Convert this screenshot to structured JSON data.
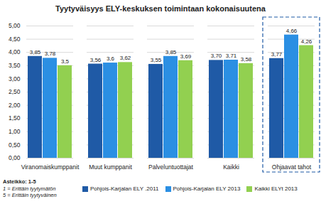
{
  "chart_data": {
    "type": "bar",
    "title": "Tyytyväisyys ELY-keskuksen toimintaan kokonaisuutena",
    "categories": [
      "Viranomaiskumppanit",
      "Muut kumppanit",
      "Palveluntuottajat",
      "Kaikki",
      "Ohjaavat tahot"
    ],
    "series": [
      {
        "name": "Pohjois-Karjalan ELY .2011",
        "color": "#1f5aa6",
        "values": [
          3.85,
          3.56,
          3.55,
          3.7,
          3.77
        ],
        "value_labels": [
          "3,85",
          "3,56",
          "3,55",
          "3,70",
          "3,77"
        ]
      },
      {
        "name": "Pohjois-Karjalan ELY 2013",
        "color": "#2b8fe3",
        "values": [
          3.78,
          3.6,
          3.85,
          3.71,
          4.66
        ],
        "value_labels": [
          "3,78",
          "3,6",
          "3,85",
          "3,71",
          "4,66"
        ]
      },
      {
        "name": "Kaikki ELYt 2013",
        "color": "#92d050",
        "values": [
          3.5,
          3.62,
          3.69,
          3.58,
          4.26
        ],
        "value_labels": [
          "3,5",
          "3,62",
          "3,69",
          "3,58",
          "4,26"
        ]
      }
    ],
    "ylim": [
      0,
      5
    ],
    "yticks": [
      {
        "value": 0,
        "label": "0,00"
      },
      {
        "value": 0.5,
        "label": "0,50"
      },
      {
        "value": 1,
        "label": "1,00"
      },
      {
        "value": 1.5,
        "label": "1,50"
      },
      {
        "value": 2,
        "label": "2,00"
      },
      {
        "value": 2.5,
        "label": "2,50"
      },
      {
        "value": 3,
        "label": "3,00"
      },
      {
        "value": 3.5,
        "label": "3,50"
      },
      {
        "value": 4,
        "label": "4,00"
      },
      {
        "value": 4.5,
        "label": "4,50"
      },
      {
        "value": 5,
        "label": "5,00"
      }
    ],
    "grid": true,
    "data_labels": true,
    "legend": "bottom",
    "annotations": [
      "Asteikko: 1-5",
      "1 = Erittäin tyytymätön",
      "5 = Erittäin tyytyväinen"
    ]
  }
}
